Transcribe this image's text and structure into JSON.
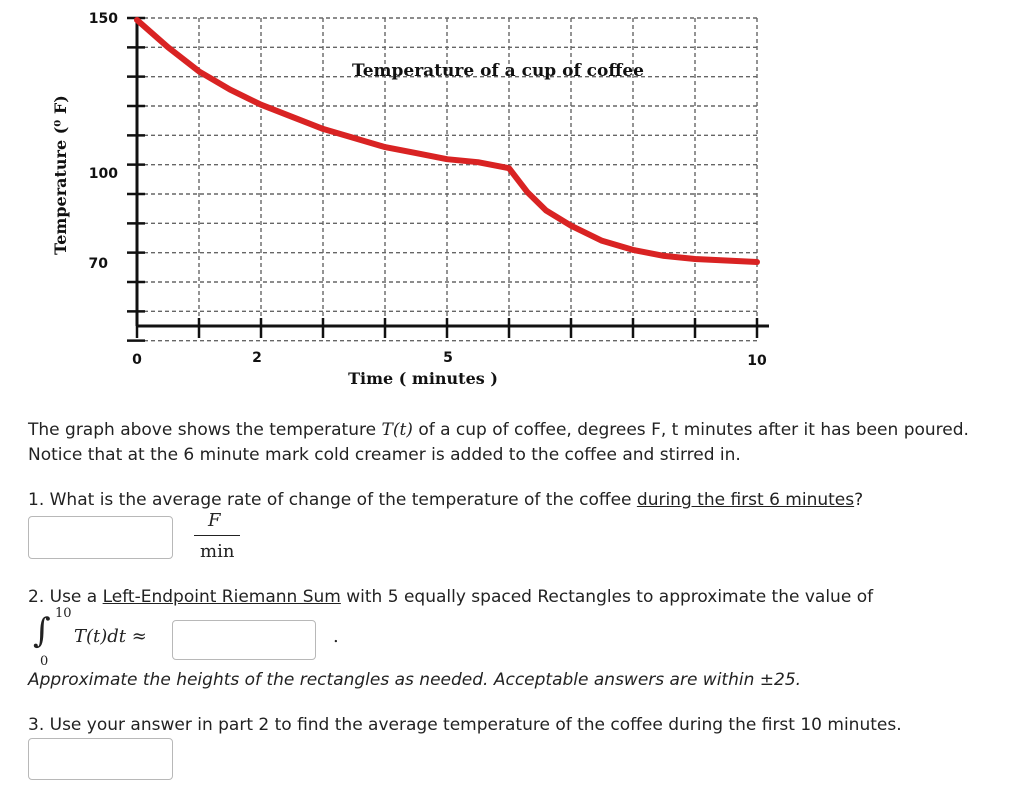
{
  "chart_data": {
    "type": "line",
    "title": "Temperature of a cup of coffee",
    "xlabel": "Time ( minutes )",
    "ylabel": "Temperature (⁰ F)",
    "x_ticks": [
      "0",
      "2",
      "5",
      "10"
    ],
    "y_ticks": [
      "150",
      "100",
      "70"
    ],
    "xlim": [
      0,
      10
    ],
    "ylim": [
      70,
      150
    ],
    "grid": true,
    "line_color": "#d92323",
    "series": [
      {
        "x": [
          0,
          0.5,
          1,
          1.5,
          2,
          2.5,
          3,
          3.5,
          4,
          4.5,
          5,
          5.5,
          6,
          6.3,
          6.6,
          7,
          7.5,
          8,
          8.5,
          9,
          9.5,
          10
        ],
        "y": [
          150,
          141,
          133,
          127,
          122,
          118,
          114,
          111,
          108,
          106,
          104,
          103,
          101,
          93,
          87,
          82,
          77,
          74,
          72,
          71,
          70.5,
          70
        ]
      }
    ]
  },
  "problem": {
    "intro_a": "The graph above shows the temperature ",
    "intro_var": "T(t)",
    "intro_b": " of a cup of coffee, degrees F, t minutes after it has been poured. Notice that at the 6 minute mark cold creamer is added to the coffee and stirred in.",
    "q1_a": "1. What is the average rate of change of the temperature of the coffee ",
    "q1_link": "during the first 6 minutes",
    "q1_b": "?",
    "unit_num": "F",
    "unit_den": "min",
    "q2_a": "2. Use a ",
    "q2_link": "Left-Endpoint Riemann Sum",
    "q2_b": " with 5 equally spaced Rectangles to approximate the value of",
    "integral_sign": "∫",
    "integral_upper": "10",
    "integral_lower": "0",
    "integrand": "T(t)dt ≈",
    "period": ".",
    "q2_note": "Approximate the heights of the rectangles as needed. Acceptable answers are within ±25.",
    "q3": "3. Use your answer in part 2 to find the average temperature of the coffee during the first 10 minutes.",
    "answer1": "",
    "answer2": "",
    "answer3": ""
  }
}
